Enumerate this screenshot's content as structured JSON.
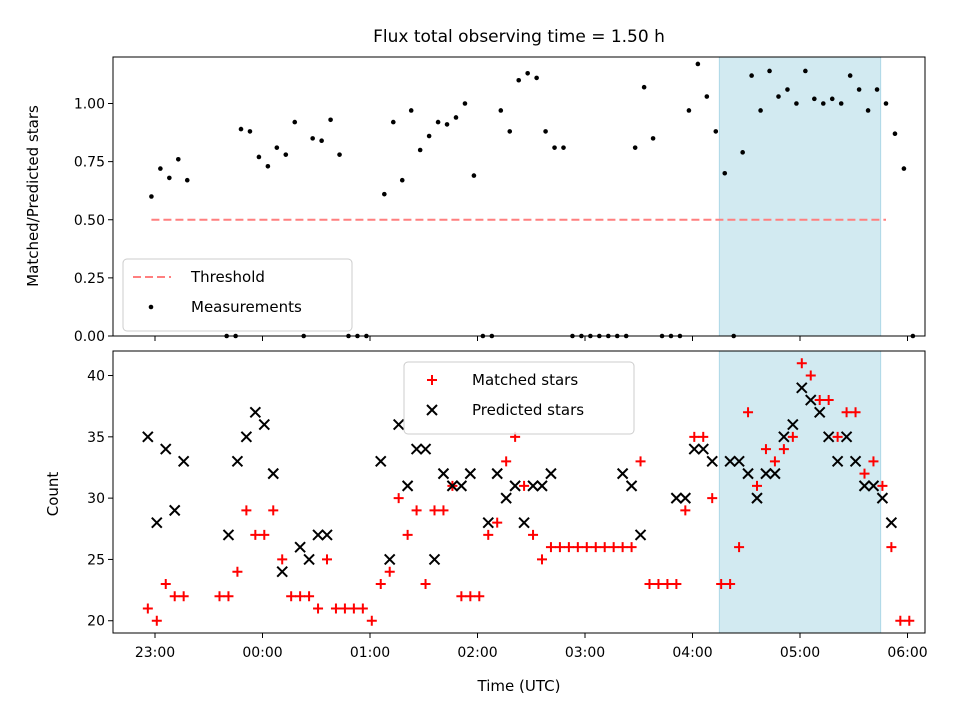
{
  "figure_title": "Flux total observing time = 1.50 h",
  "xlabel": "Time (UTC)",
  "x_ticks": [
    {
      "t": 0,
      "label": "23:00"
    },
    {
      "t": 1,
      "label": "00:00"
    },
    {
      "t": 2,
      "label": "01:00"
    },
    {
      "t": 3,
      "label": "02:00"
    },
    {
      "t": 4,
      "label": "03:00"
    },
    {
      "t": 5,
      "label": "04:00"
    },
    {
      "t": 6,
      "label": "05:00"
    },
    {
      "t": 7,
      "label": "06:00"
    }
  ],
  "colors": {
    "threshold": "#ff7f7f",
    "measurements": "#000000",
    "matched": "#ff0000",
    "predicted": "#000000",
    "highlight": "#add8e6"
  },
  "chart_data": [
    {
      "type": "scatter",
      "ylabel": "Matched/Predicted stars",
      "xlim": [
        "22:36",
        "06:10"
      ],
      "ylim": [
        0,
        1.2
      ],
      "y_ticks": [
        "0.00",
        "0.25",
        "0.50",
        "0.75",
        "1.00"
      ],
      "highlight_span": [
        "04:15",
        "05:45"
      ],
      "legend": {
        "placement": "lower-left",
        "entries": [
          "Threshold",
          "Measurements"
        ]
      },
      "series": [
        {
          "name": "Threshold",
          "style": "dashed-line",
          "x": [
            "22:58",
            "05:48"
          ],
          "y": [
            0.5,
            0.5
          ]
        },
        {
          "name": "Measurements",
          "style": "dots",
          "points": [
            [
              "22:58",
              0.6
            ],
            [
              "23:03",
              0.72
            ],
            [
              "23:08",
              0.68
            ],
            [
              "23:13",
              0.76
            ],
            [
              "23:18",
              0.67
            ],
            [
              "23:40",
              0.0
            ],
            [
              "23:45",
              0.0
            ],
            [
              "23:48",
              0.89
            ],
            [
              "23:53",
              0.88
            ],
            [
              "23:58",
              0.77
            ],
            [
              "00:03",
              0.73
            ],
            [
              "00:08",
              0.81
            ],
            [
              "00:13",
              0.78
            ],
            [
              "00:18",
              0.92
            ],
            [
              "00:23",
              0.0
            ],
            [
              "00:28",
              0.85
            ],
            [
              "00:33",
              0.84
            ],
            [
              "00:38",
              0.93
            ],
            [
              "00:43",
              0.78
            ],
            [
              "00:48",
              0.0
            ],
            [
              "00:53",
              0.0
            ],
            [
              "00:58",
              0.0
            ],
            [
              "01:08",
              0.61
            ],
            [
              "01:13",
              0.92
            ],
            [
              "01:18",
              0.67
            ],
            [
              "01:23",
              0.97
            ],
            [
              "01:28",
              0.8
            ],
            [
              "01:33",
              0.86
            ],
            [
              "01:38",
              0.92
            ],
            [
              "01:43",
              0.91
            ],
            [
              "01:48",
              0.94
            ],
            [
              "01:53",
              1.0
            ],
            [
              "01:58",
              0.69
            ],
            [
              "02:03",
              0.0
            ],
            [
              "02:08",
              0.0
            ],
            [
              "02:13",
              0.97
            ],
            [
              "02:18",
              0.88
            ],
            [
              "02:23",
              1.1
            ],
            [
              "02:28",
              1.13
            ],
            [
              "02:33",
              1.11
            ],
            [
              "02:38",
              0.88
            ],
            [
              "02:43",
              0.81
            ],
            [
              "02:48",
              0.81
            ],
            [
              "02:53",
              0.0
            ],
            [
              "02:58",
              0.0
            ],
            [
              "03:03",
              0.0
            ],
            [
              "03:08",
              0.0
            ],
            [
              "03:13",
              0.0
            ],
            [
              "03:18",
              0.0
            ],
            [
              "03:23",
              0.0
            ],
            [
              "03:28",
              0.81
            ],
            [
              "03:33",
              1.07
            ],
            [
              "03:38",
              0.85
            ],
            [
              "03:43",
              0.0
            ],
            [
              "03:48",
              0.0
            ],
            [
              "03:53",
              0.0
            ],
            [
              "03:58",
              0.97
            ],
            [
              "04:03",
              1.17
            ],
            [
              "04:08",
              1.03
            ],
            [
              "04:13",
              0.88
            ],
            [
              "04:18",
              0.7
            ],
            [
              "04:23",
              0.0
            ],
            [
              "04:28",
              0.79
            ],
            [
              "04:33",
              1.12
            ],
            [
              "04:38",
              0.97
            ],
            [
              "04:43",
              1.14
            ],
            [
              "04:48",
              1.03
            ],
            [
              "04:53",
              1.06
            ],
            [
              "04:58",
              1.0
            ],
            [
              "05:03",
              1.14
            ],
            [
              "05:08",
              1.02
            ],
            [
              "05:13",
              1.0
            ],
            [
              "05:18",
              1.02
            ],
            [
              "05:23",
              1.0
            ],
            [
              "05:28",
              1.12
            ],
            [
              "05:33",
              1.06
            ],
            [
              "05:38",
              0.97
            ],
            [
              "05:43",
              1.06
            ],
            [
              "05:48",
              1.0
            ],
            [
              "05:53",
              0.87
            ],
            [
              "05:58",
              0.72
            ],
            [
              "06:03",
              0.0
            ]
          ]
        }
      ]
    },
    {
      "type": "scatter",
      "ylabel": "Count",
      "xlim": [
        "22:36",
        "06:10"
      ],
      "ylim": [
        19,
        42
      ],
      "y_ticks": [
        "20",
        "25",
        "30",
        "35",
        "40"
      ],
      "highlight_span": [
        "04:15",
        "05:45"
      ],
      "legend": {
        "placement": "upper-center",
        "entries": [
          "Matched stars",
          "Predicted stars"
        ]
      },
      "series": [
        {
          "name": "Matched stars",
          "marker": "+",
          "points": [
            [
              "22:56",
              21
            ],
            [
              "23:01",
              20
            ],
            [
              "23:06",
              23
            ],
            [
              "23:11",
              22
            ],
            [
              "23:16",
              22
            ],
            [
              "23:36",
              22
            ],
            [
              "23:41",
              22
            ],
            [
              "23:46",
              24
            ],
            [
              "23:51",
              29
            ],
            [
              "23:56",
              27
            ],
            [
              "00:01",
              27
            ],
            [
              "00:06",
              29
            ],
            [
              "00:11",
              25
            ],
            [
              "00:16",
              22
            ],
            [
              "00:21",
              22
            ],
            [
              "00:26",
              22
            ],
            [
              "00:31",
              21
            ],
            [
              "00:36",
              25
            ],
            [
              "00:41",
              21
            ],
            [
              "00:46",
              21
            ],
            [
              "00:51",
              21
            ],
            [
              "00:56",
              21
            ],
            [
              "01:01",
              20
            ],
            [
              "01:06",
              23
            ],
            [
              "01:11",
              24
            ],
            [
              "01:16",
              30
            ],
            [
              "01:21",
              27
            ],
            [
              "01:26",
              29
            ],
            [
              "01:31",
              23
            ],
            [
              "01:36",
              29
            ],
            [
              "01:41",
              29
            ],
            [
              "01:46",
              31
            ],
            [
              "01:51",
              22
            ],
            [
              "01:56",
              22
            ],
            [
              "02:01",
              22
            ],
            [
              "02:06",
              27
            ],
            [
              "02:11",
              28
            ],
            [
              "02:16",
              33
            ],
            [
              "02:21",
              35
            ],
            [
              "02:26",
              31
            ],
            [
              "02:31",
              27
            ],
            [
              "02:36",
              25
            ],
            [
              "02:41",
              26
            ],
            [
              "02:46",
              26
            ],
            [
              "02:51",
              26
            ],
            [
              "02:56",
              26
            ],
            [
              "03:01",
              26
            ],
            [
              "03:06",
              26
            ],
            [
              "03:11",
              26
            ],
            [
              "03:16",
              26
            ],
            [
              "03:21",
              26
            ],
            [
              "03:26",
              26
            ],
            [
              "03:31",
              33
            ],
            [
              "03:36",
              23
            ],
            [
              "03:41",
              23
            ],
            [
              "03:46",
              23
            ],
            [
              "03:51",
              23
            ],
            [
              "03:56",
              29
            ],
            [
              "04:01",
              35
            ],
            [
              "04:06",
              35
            ],
            [
              "04:11",
              30
            ],
            [
              "04:16",
              23
            ],
            [
              "04:21",
              23
            ],
            [
              "04:26",
              26
            ],
            [
              "04:31",
              37
            ],
            [
              "04:36",
              31
            ],
            [
              "04:41",
              34
            ],
            [
              "04:46",
              33
            ],
            [
              "04:51",
              34
            ],
            [
              "04:56",
              35
            ],
            [
              "05:01",
              41
            ],
            [
              "05:06",
              40
            ],
            [
              "05:11",
              38
            ],
            [
              "05:16",
              38
            ],
            [
              "05:21",
              35
            ],
            [
              "05:26",
              37
            ],
            [
              "05:31",
              37
            ],
            [
              "05:36",
              32
            ],
            [
              "05:41",
              33
            ],
            [
              "05:46",
              31
            ],
            [
              "05:51",
              26
            ],
            [
              "05:56",
              20
            ],
            [
              "06:01",
              20
            ]
          ]
        },
        {
          "name": "Predicted stars",
          "marker": "x",
          "points": [
            [
              "22:56",
              35
            ],
            [
              "23:01",
              28
            ],
            [
              "23:06",
              34
            ],
            [
              "23:11",
              29
            ],
            [
              "23:16",
              33
            ],
            [
              "23:41",
              27
            ],
            [
              "23:46",
              33
            ],
            [
              "23:51",
              35
            ],
            [
              "23:56",
              37
            ],
            [
              "00:01",
              36
            ],
            [
              "00:06",
              32
            ],
            [
              "00:11",
              24
            ],
            [
              "00:21",
              26
            ],
            [
              "00:26",
              25
            ],
            [
              "00:31",
              27
            ],
            [
              "00:36",
              27
            ],
            [
              "01:06",
              33
            ],
            [
              "01:11",
              25
            ],
            [
              "01:16",
              36
            ],
            [
              "01:21",
              31
            ],
            [
              "01:26",
              34
            ],
            [
              "01:31",
              34
            ],
            [
              "01:36",
              25
            ],
            [
              "01:41",
              32
            ],
            [
              "01:46",
              31
            ],
            [
              "01:51",
              31
            ],
            [
              "01:56",
              32
            ],
            [
              "02:06",
              28
            ],
            [
              "02:11",
              32
            ],
            [
              "02:16",
              30
            ],
            [
              "02:21",
              31
            ],
            [
              "02:26",
              28
            ],
            [
              "02:31",
              31
            ],
            [
              "02:36",
              31
            ],
            [
              "02:41",
              32
            ],
            [
              "03:21",
              32
            ],
            [
              "03:26",
              31
            ],
            [
              "03:31",
              27
            ],
            [
              "03:51",
              30
            ],
            [
              "03:56",
              30
            ],
            [
              "04:01",
              34
            ],
            [
              "04:06",
              34
            ],
            [
              "04:11",
              33
            ],
            [
              "04:21",
              33
            ],
            [
              "04:26",
              33
            ],
            [
              "04:31",
              32
            ],
            [
              "04:36",
              30
            ],
            [
              "04:41",
              32
            ],
            [
              "04:46",
              32
            ],
            [
              "04:51",
              35
            ],
            [
              "04:56",
              36
            ],
            [
              "05:01",
              39
            ],
            [
              "05:06",
              38
            ],
            [
              "05:11",
              37
            ],
            [
              "05:16",
              35
            ],
            [
              "05:21",
              33
            ],
            [
              "05:26",
              35
            ],
            [
              "05:31",
              33
            ],
            [
              "05:36",
              31
            ],
            [
              "05:41",
              31
            ],
            [
              "05:46",
              30
            ],
            [
              "05:51",
              28
            ]
          ]
        }
      ]
    }
  ]
}
